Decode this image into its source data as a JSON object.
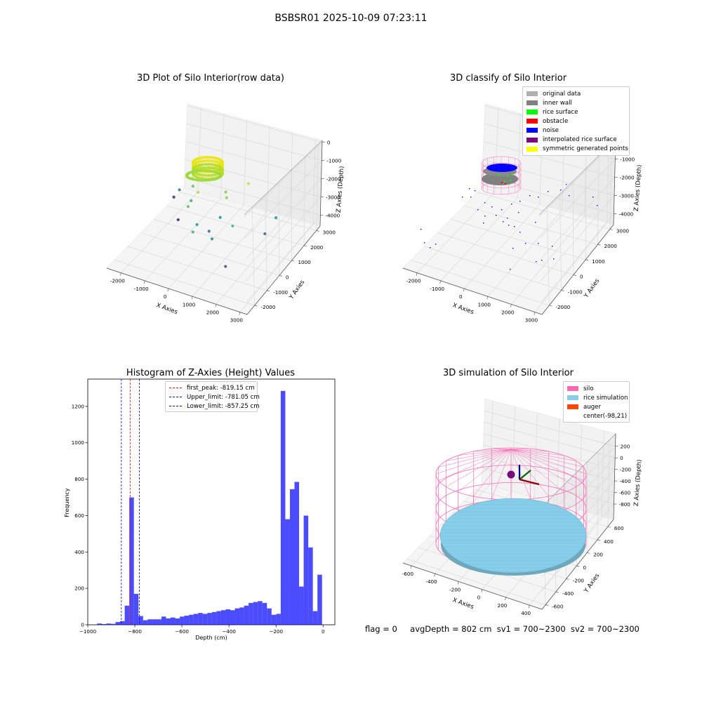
{
  "page_title": "BSBSR01 2025-10-09 07:23:11",
  "status": {
    "flag": "flag = 0",
    "avg_depth": "avgDepth = 802 cm",
    "sv1": "sv1 = 700~2300",
    "sv2": "sv2 = 700~2300"
  },
  "chart_data": [
    {
      "type": "scatter",
      "projection": "3d",
      "title": "3D Plot of Silo Interior(row data)",
      "xlabel": "X Axies",
      "ylabel": "Y Axies",
      "zlabel": "Z Axies (Depth)",
      "x_ticks": [
        "-2000",
        "-1000",
        "0",
        "1000",
        "2000",
        "3000"
      ],
      "y_ticks": [
        "-2000",
        "-1000",
        "0",
        "1000",
        "2000",
        "3000"
      ],
      "z_ticks": [
        "0",
        "-1000",
        "-2000",
        "-3000",
        "-4000"
      ],
      "xlim": [
        -2600,
        3300
      ],
      "ylim": [
        -2600,
        3300
      ],
      "zlim": [
        -4600,
        100
      ],
      "grid": true,
      "colormap": "viridis (by depth)",
      "series": [
        {
          "values": [
            [
              -300,
              200,
              -1900
            ],
            [
              -900,
              900,
              -2300
            ],
            [
              300,
              -1300,
              -2600
            ],
            [
              700,
              600,
              -2100
            ],
            [
              1500,
              -400,
              -2500
            ],
            [
              -1800,
              1500,
              -3200
            ],
            [
              -2200,
              1800,
              -3900
            ],
            [
              -1400,
              700,
              -4000
            ],
            [
              100,
              -600,
              -2800
            ],
            [
              900,
              -900,
              -3000
            ],
            [
              2300,
              700,
              -3400
            ],
            [
              600,
              300,
              -2900
            ],
            [
              -500,
              -200,
              -2400
            ],
            [
              1200,
              1400,
              -1800
            ],
            [
              -700,
              400,
              -2600
            ],
            [
              400,
              -200,
              -3300
            ],
            [
              1800,
              -1500,
              -3600
            ],
            [
              2500,
              1200,
              -2900
            ],
            [
              -1100,
              1200,
              -2200
            ],
            [
              500,
              900,
              -2100
            ]
          ]
        }
      ]
    },
    {
      "type": "scatter",
      "projection": "3d",
      "title": "3D classify of Silo Interior",
      "xlabel": "X Axies",
      "ylabel": "Y Axies",
      "zlabel": "Z Axies (Depth)",
      "x_ticks": [
        "-2000",
        "-1000",
        "0",
        "1000",
        "2000",
        "3000"
      ],
      "y_ticks": [
        "-2000",
        "-1000",
        "0",
        "1000",
        "2000",
        "3000"
      ],
      "z_ticks": [
        "0",
        "-1000",
        "-2000",
        "-3000",
        "-4000"
      ],
      "xlim": [
        -2600,
        3300
      ],
      "ylim": [
        -2600,
        3300
      ],
      "zlim": [
        -4600,
        100
      ],
      "grid": true,
      "legend_position": "top-right",
      "legend": [
        {
          "label": "original data",
          "color": "#b0b0b0"
        },
        {
          "label": "inner wall",
          "color": "#808080"
        },
        {
          "label": "rice surface",
          "color": "#00ff00"
        },
        {
          "label": "obstacle",
          "color": "#ff0000"
        },
        {
          "label": "noise",
          "color": "#0000ff"
        },
        {
          "label": "interpolated rice surface",
          "color": "#800080"
        },
        {
          "label": "symmetric generated points",
          "color": "#ffff00"
        }
      ]
    },
    {
      "type": "bar",
      "title": "Histogram of Z-Axies (Height) Values",
      "xlabel": "Depth (cm)",
      "ylabel": "Frequency",
      "xlim": [
        -1000,
        50
      ],
      "ylim": [
        0,
        1350
      ],
      "x_ticks": [
        "−1000",
        "−800",
        "−600",
        "−400",
        "−200",
        "0"
      ],
      "y_ticks": [
        "0",
        "200",
        "400",
        "600",
        "800",
        "1000",
        "1200"
      ],
      "bar_color": "#0000ff",
      "bin_width": 19.5,
      "bin_start": -960,
      "values": [
        7,
        4,
        7,
        5,
        15,
        20,
        105,
        700,
        170,
        48,
        25,
        30,
        30,
        30,
        45,
        35,
        40,
        35,
        45,
        50,
        55,
        60,
        65,
        60,
        65,
        70,
        75,
        80,
        85,
        80,
        90,
        95,
        105,
        120,
        125,
        130,
        120,
        90,
        55,
        60,
        1285,
        580,
        745,
        785,
        210,
        600,
        425,
        75,
        275
      ],
      "lines": [
        {
          "label": "first_peak: -819.15 cm",
          "x": -819.15,
          "color": "#ff0000"
        },
        {
          "label": "Upper_limit: -781.05 cm",
          "x": -781.05,
          "color": "#0000ff"
        },
        {
          "label": "Lower_limit: -857.25 cm",
          "x": -857.25,
          "color": "#0000ff"
        }
      ],
      "legend_position": "upper center"
    },
    {
      "type": "scatter",
      "projection": "3d",
      "title": "3D simulation of Silo Interior",
      "xlabel": "X Axies",
      "ylabel": "Y Axies",
      "zlabel": "Z Axies (Depth)",
      "x_ticks": [
        "-600",
        "-400",
        "-200",
        "0",
        "200",
        "400"
      ],
      "y_ticks": [
        "-600",
        "-400",
        "-200",
        "0",
        "200",
        "400",
        "600"
      ],
      "z_ticks": [
        "200",
        "0",
        "-200",
        "-400",
        "-600",
        "-800"
      ],
      "grid": true,
      "legend_position": "top-right",
      "legend": [
        {
          "label": "silo",
          "color": "#ff69b4"
        },
        {
          "label": "rice simulation",
          "color": "#87ceeb"
        },
        {
          "label": "auger",
          "color": "#ff4500"
        },
        {
          "label": "center(-98,21)",
          "color": ""
        }
      ]
    }
  ]
}
